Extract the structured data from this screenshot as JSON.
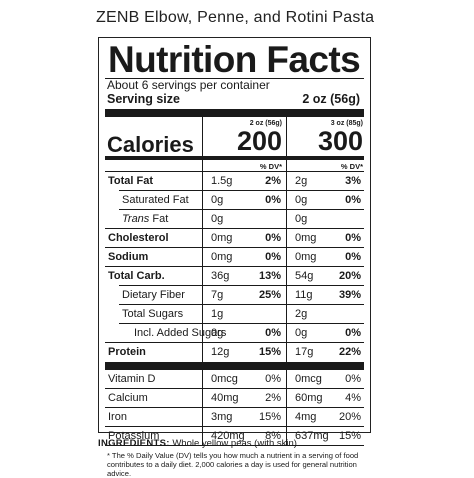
{
  "product_title": "ZENB Elbow, Penne, and Rotini Pasta",
  "label": {
    "heading": "Nutrition Facts",
    "servings": "About 6 servings per container",
    "serving_size_label": "Serving size",
    "serving_size_value": "2 oz (56g)",
    "col1_header": "2 oz (56g)",
    "col2_header": "3 oz (85g)",
    "calories_label": "Calories",
    "calories_1": "200",
    "calories_2": "300",
    "dv_header": "% DV*",
    "nutrients": [
      {
        "name": "Total Fat",
        "bold": true,
        "indent": 0,
        "a1": "1.5g",
        "p1": "2%",
        "a2": "2g",
        "p2": "3%"
      },
      {
        "name": "Saturated Fat",
        "bold": false,
        "indent": 1,
        "a1": "0g",
        "p1": "0%",
        "a2": "0g",
        "p2": "0%"
      },
      {
        "name": "Trans Fat",
        "bold": false,
        "indent": 1,
        "italic_prefix": "Trans",
        "a1": "0g",
        "p1": "",
        "a2": "0g",
        "p2": ""
      },
      {
        "name": "Cholesterol",
        "bold": true,
        "indent": 0,
        "a1": "0mg",
        "p1": "0%",
        "a2": "0mg",
        "p2": "0%"
      },
      {
        "name": "Sodium",
        "bold": true,
        "indent": 0,
        "a1": "0mg",
        "p1": "0%",
        "a2": "0mg",
        "p2": "0%"
      },
      {
        "name": "Total Carb.",
        "bold": true,
        "indent": 0,
        "a1": "36g",
        "p1": "13%",
        "a2": "54g",
        "p2": "20%"
      },
      {
        "name": "Dietary Fiber",
        "bold": false,
        "indent": 1,
        "a1": "7g",
        "p1": "25%",
        "a2": "11g",
        "p2": "39%"
      },
      {
        "name": "Total Sugars",
        "bold": false,
        "indent": 1,
        "a1": "1g",
        "p1": "",
        "a2": "2g",
        "p2": ""
      },
      {
        "name": "Incl. Added Sugars",
        "bold": false,
        "indent": 2,
        "a1": "0g",
        "p1": "0%",
        "a2": "0g",
        "p2": "0%"
      },
      {
        "name": "Protein",
        "bold": true,
        "indent": 0,
        "a1": "12g",
        "p1": "15%",
        "a2": "17g",
        "p2": "22%"
      }
    ],
    "vitamins": [
      {
        "name": "Vitamin D",
        "a1": "0mcg",
        "p1": "0%",
        "a2": "0mcg",
        "p2": "0%"
      },
      {
        "name": "Calcium",
        "a1": "40mg",
        "p1": "2%",
        "a2": "60mg",
        "p2": "4%"
      },
      {
        "name": "Iron",
        "a1": "3mg",
        "p1": "15%",
        "a2": "4mg",
        "p2": "20%"
      },
      {
        "name": "Potassium",
        "a1": "420mg",
        "p1": "8%",
        "a2": "637mg",
        "p2": "15%"
      }
    ],
    "footnote": "* The % Daily Value (DV) tells you how much a nutrient in a serving of food contributes to a daily diet. 2,000 calories a day is used for general nutrition advice."
  },
  "ingredients": {
    "heading": "INGREDIENTS:",
    "text": "Whole yellow peas (with skin)."
  }
}
